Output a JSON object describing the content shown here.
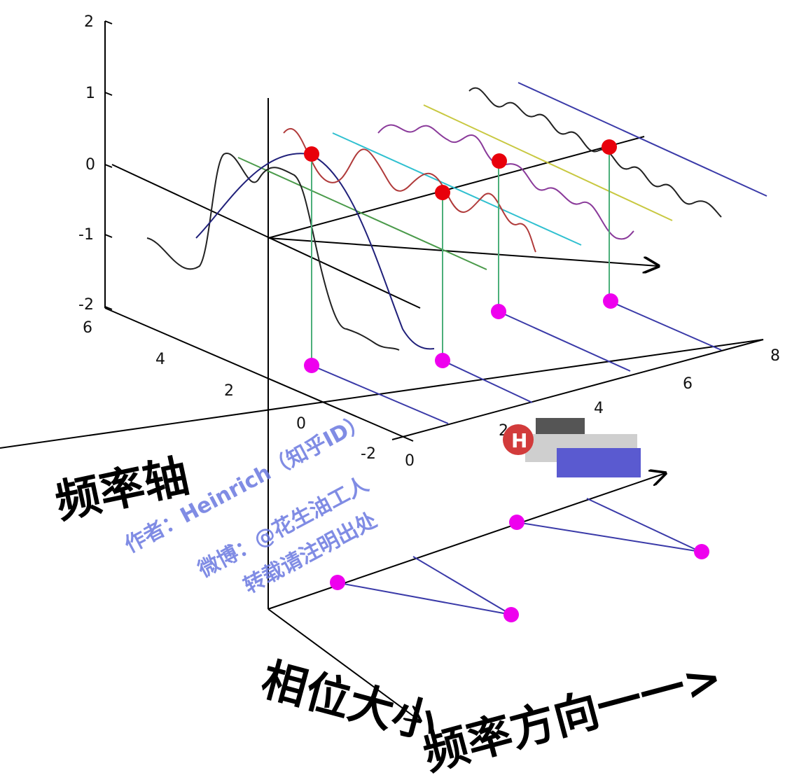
{
  "z_ticks": [
    "2",
    "1",
    "0",
    "-1",
    "-2"
  ],
  "freq_axis_ticks": [
    "6",
    "4",
    "2",
    "0",
    "-2"
  ],
  "time_axis_ticks": [
    "0",
    "2",
    "4",
    "6",
    "8"
  ],
  "labels": {
    "freq_axis": "频率轴",
    "phase": "相位大小",
    "freq_direction": "频率方向一一>"
  },
  "watermark": {
    "line1": "作者：Heinrich（知乎ID）",
    "line2": "微博：@花生油工人",
    "line3": "转载请注明出处"
  },
  "logo_letter": "H",
  "colors": {
    "stem_dot": "#ee00ee",
    "peak_dot": "#e8000b",
    "stem": "#4caf7a",
    "phase_line": "#3a3aa8",
    "wave_red": "#b03a3a",
    "wave_purple": "#8a3a9a",
    "wave_black": "#222222",
    "wave_navy": "#20207a",
    "guide_green": "#4a9a4a",
    "guide_cyan": "#30c0d0",
    "guide_yellow": "#c8c840",
    "guide_blue": "#3a3aa8"
  }
}
